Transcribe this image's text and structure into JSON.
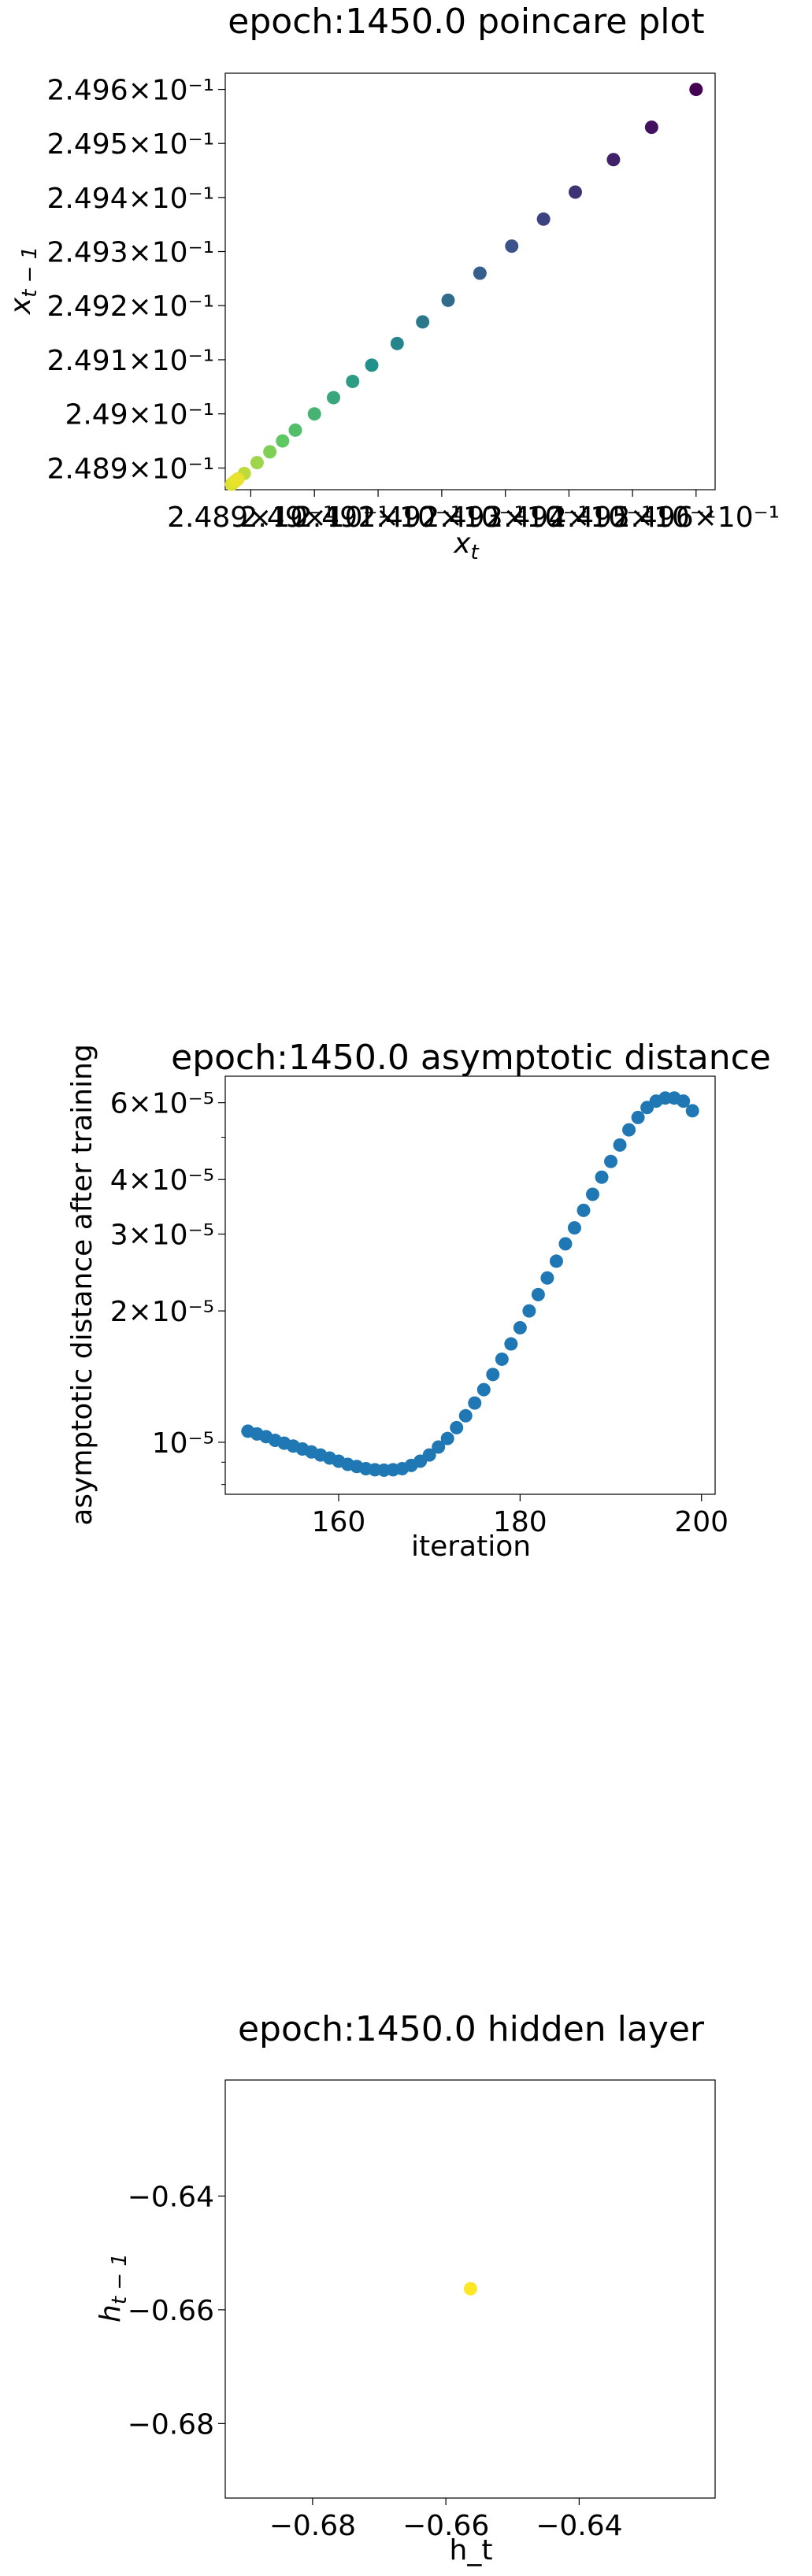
{
  "chart_data": [
    {
      "type": "scatter",
      "title": "epoch:1450.0 poincare plot",
      "xlabel": "x",
      "xlabel_sub": "t",
      "ylabel": "x",
      "ylabel_sub": "t − 1",
      "xscale": "log",
      "yscale": "log",
      "xlim": [
        0.24886,
        0.24963
      ],
      "ylim": [
        0.24886,
        0.24963
      ],
      "x_ticks": [
        {
          "value": 0.2489,
          "label": "2.489×10⁻¹"
        },
        {
          "value": 0.249,
          "label": "2.49×10⁻¹"
        },
        {
          "value": 0.2491,
          "label": "2.491×10⁻¹"
        },
        {
          "value": 0.2492,
          "label": "2.492×10⁻¹"
        },
        {
          "value": 0.2493,
          "label": "2.493×10⁻¹"
        },
        {
          "value": 0.2494,
          "label": "2.494×10⁻¹"
        },
        {
          "value": 0.2495,
          "label": "2.495×10⁻¹"
        },
        {
          "value": 0.2496,
          "label": "2.496×10⁻¹"
        }
      ],
      "y_ticks": [
        {
          "value": 0.2489,
          "label": "2.489×10⁻¹"
        },
        {
          "value": 0.249,
          "label": "2.49×10⁻¹"
        },
        {
          "value": 0.2491,
          "label": "2.491×10⁻¹"
        },
        {
          "value": 0.2492,
          "label": "2.492×10⁻¹"
        },
        {
          "value": 0.2493,
          "label": "2.493×10⁻¹"
        },
        {
          "value": 0.2494,
          "label": "2.494×10⁻¹"
        },
        {
          "value": 0.2495,
          "label": "2.495×10⁻¹"
        },
        {
          "value": 0.2496,
          "label": "2.496×10⁻¹"
        }
      ],
      "colormap": [
        "#440154",
        "#3b528b",
        "#21918c",
        "#5ec962",
        "#fde725"
      ],
      "x": [
        0.2496,
        0.24953,
        0.24947,
        0.24941,
        0.24936,
        0.24931,
        0.24926,
        0.24921,
        0.24917,
        0.24913,
        0.24909,
        0.24906,
        0.24903,
        0.249,
        0.24897,
        0.24895,
        0.24893,
        0.24891,
        0.24889,
        0.24888,
        0.24887
      ],
      "y": [
        0.2496,
        0.24953,
        0.24947,
        0.24941,
        0.24936,
        0.24931,
        0.24926,
        0.24921,
        0.24917,
        0.24913,
        0.24909,
        0.24906,
        0.24903,
        0.249,
        0.24897,
        0.24895,
        0.24893,
        0.24891,
        0.24889,
        0.24888,
        0.24887
      ],
      "grid": false
    },
    {
      "type": "scatter",
      "title": "epoch:1450.0 asymptotic distance",
      "xlabel": "iteration",
      "ylabel": "asymptotic distance after training",
      "yscale": "log",
      "xlim": [
        147.5,
        201.5
      ],
      "ylim": [
        7.8e-06,
        7.2e-06
      ],
      "x_ticks": [
        {
          "value": 160,
          "label": "160"
        },
        {
          "value": 180,
          "label": "180"
        },
        {
          "value": 200,
          "label": "200"
        }
      ],
      "y_ticks": [
        {
          "value": 1e-05,
          "label": "10⁻⁵"
        },
        {
          "value": 2e-05,
          "label": "2×10⁻⁵"
        },
        {
          "value": 3e-05,
          "label": "3×10⁻⁵"
        },
        {
          "value": 4e-05,
          "label": "4×10⁻⁵"
        },
        {
          "value": 6e-05,
          "label": "6×10⁻⁵"
        }
      ],
      "color": "#1f77b4",
      "x": [
        150,
        151,
        152,
        153,
        154,
        155,
        156,
        157,
        158,
        159,
        160,
        161,
        162,
        163,
        164,
        165,
        166,
        167,
        168,
        169,
        170,
        171,
        172,
        173,
        174,
        175,
        176,
        177,
        178,
        179,
        180,
        181,
        182,
        183,
        184,
        185,
        186,
        187,
        188,
        189,
        190,
        191,
        192,
        193,
        194,
        195,
        196,
        197,
        198,
        199
      ],
      "y": [
        1.06e-05,
        1.045e-05,
        1.03e-05,
        1.01e-05,
        9.95e-06,
        9.8e-06,
        9.65e-06,
        9.5e-06,
        9.35e-06,
        9.2e-06,
        9.05e-06,
        8.9e-06,
        8.8e-06,
        8.7e-06,
        8.65e-06,
        8.63e-06,
        8.65e-06,
        8.7e-06,
        8.85e-06,
        9.05e-06,
        9.35e-06,
        9.75e-06,
        1.02e-05,
        1.08e-05,
        1.15e-05,
        1.23e-05,
        1.32e-05,
        1.43e-05,
        1.55e-05,
        1.68e-05,
        1.83e-05,
        2e-05,
        2.18e-05,
        2.38e-05,
        2.6e-05,
        2.85e-05,
        3.1e-05,
        3.4e-05,
        3.7e-05,
        4.05e-05,
        4.4e-05,
        4.8e-05,
        5.2e-05,
        5.55e-05,
        5.85e-05,
        6.05e-05,
        6.15e-05,
        6.15e-05,
        6.05e-05,
        5.75e-05
      ],
      "grid": false
    },
    {
      "type": "scatter",
      "title": "epoch:1450.0 hidden layer",
      "xlabel": "h_t",
      "ylabel": "h",
      "ylabel_sub": "t − 1",
      "xlim": [
        -0.6931,
        -0.6196
      ],
      "ylim": [
        -0.6931,
        -0.6196
      ],
      "x_ticks": [
        {
          "value": -0.68,
          "label": "−0.68"
        },
        {
          "value": -0.66,
          "label": "−0.66"
        },
        {
          "value": -0.64,
          "label": "−0.64"
        }
      ],
      "y_ticks": [
        {
          "value": -0.68,
          "label": "−0.68"
        },
        {
          "value": -0.66,
          "label": "−0.66"
        },
        {
          "value": -0.64,
          "label": "−0.64"
        }
      ],
      "color": "#fde725",
      "x": [
        -0.6563
      ],
      "y": [
        -0.6563
      ],
      "grid": false
    }
  ]
}
